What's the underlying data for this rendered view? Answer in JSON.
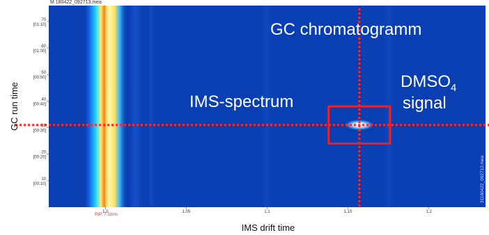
{
  "chart_data": {
    "type": "heatmap",
    "title": "",
    "xlabel": "IMS drift time",
    "ylabel": "GC run time",
    "xlim": [
      0.965,
      1.235
    ],
    "ylim": [
      0,
      76
    ],
    "x_ticks": [
      {
        "value": 1.0,
        "label": "1.0"
      },
      {
        "value": 1.05,
        "label": "1.05"
      },
      {
        "value": 1.1,
        "label": "1.1"
      },
      {
        "value": 1.15,
        "label": "1.15"
      },
      {
        "value": 1.2,
        "label": "1.2"
      }
    ],
    "rip_label": "RIP: 7.31ms",
    "y_ticks": [
      {
        "value": 10,
        "label": "10",
        "time": "[00:10]"
      },
      {
        "value": 20,
        "label": "20",
        "time": "[00:20]"
      },
      {
        "value": 30,
        "label": "30",
        "time": "[00:30]"
      },
      {
        "value": 40,
        "label": "40",
        "time": "[00:40]"
      },
      {
        "value": 50,
        "label": "50",
        "time": "[00:50]"
      },
      {
        "value": 60,
        "label": "60",
        "time": "[01:00]"
      },
      {
        "value": 70,
        "label": "70",
        "time": "[01:10]"
      }
    ],
    "colors": {
      "background": "#0a3fb3",
      "rip_peak": "#fff4b0",
      "signal": "#e9fbff",
      "guide_lines": "#ff2a2a",
      "box": "#ff1a1a"
    },
    "rip_band": {
      "x": 1.0,
      "y_range": [
        0,
        76
      ]
    },
    "signal": {
      "name": "DMSO4",
      "x": 1.157,
      "y": 31,
      "intensity": 1.0
    },
    "guide_lines": {
      "horizontal_y": 31,
      "vertical_x": 1.157
    },
    "highlight_box": {
      "x_range": [
        1.138,
        1.176
      ],
      "y_range": [
        24,
        38
      ]
    },
    "annotations": {
      "gc": "GC chromatogramm",
      "ims": "IMS-spectrum",
      "dmso_main": "DMSO",
      "dmso_sub": "4",
      "dmso_second": "signal"
    },
    "side_filename": "31180422_092713.mea",
    "top_label": "M 180422_092713.mea"
  }
}
